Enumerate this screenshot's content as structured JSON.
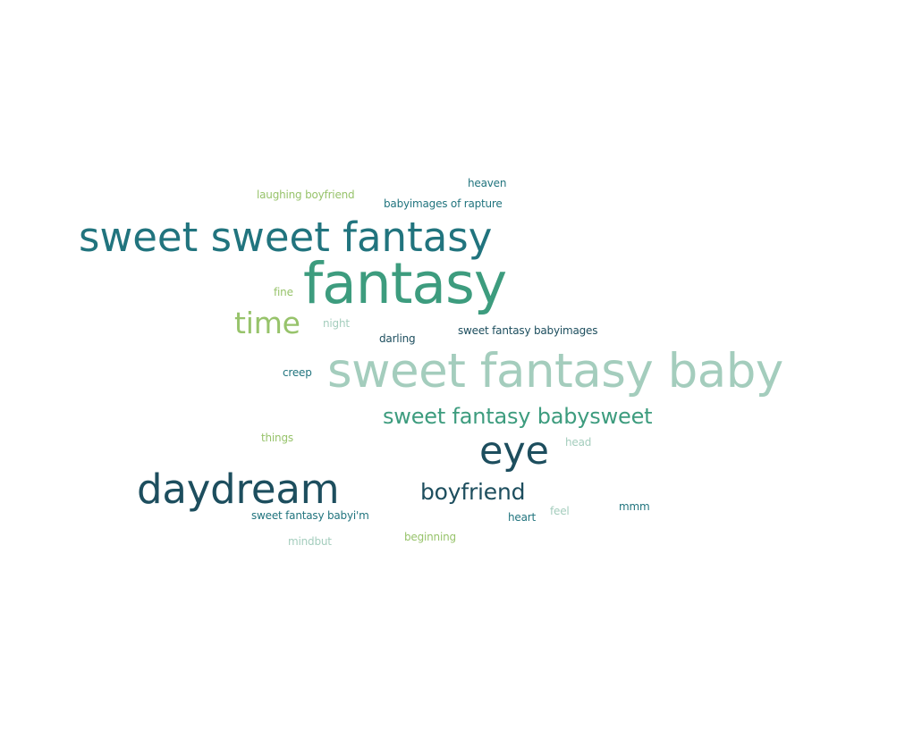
{
  "colors": {
    "background": "#ffffff",
    "dark_teal": "#1d4e5e",
    "teal": "#21747e",
    "green_teal": "#3d9c7e",
    "light_green": "#97c36b",
    "pale_mint": "#a4cdbd"
  },
  "words": {
    "heaven": {
      "text": "heaven",
      "color": "#21747e"
    },
    "laughing_boyfriend": {
      "text": "laughing boyfriend",
      "color": "#97c36b"
    },
    "babyimages_of_rapture": {
      "text": "babyimages of rapture",
      "color": "#21747e"
    },
    "sweet_sweet_fantasy": {
      "text": "sweet sweet fantasy",
      "color": "#21747e"
    },
    "fantasy": {
      "text": "fantasy",
      "color": "#3d9c7e"
    },
    "fine": {
      "text": "fine",
      "color": "#97c36b"
    },
    "time": {
      "text": "time",
      "color": "#97c36b"
    },
    "night": {
      "text": "night",
      "color": "#a4cdbd"
    },
    "sweet_fantasy_babyimages": {
      "text": "sweet fantasy babyimages",
      "color": "#1d4e5e"
    },
    "darling": {
      "text": "darling",
      "color": "#1d4e5e"
    },
    "sweet_fantasy_baby": {
      "text": "sweet fantasy baby",
      "color": "#a4cdbd"
    },
    "creep": {
      "text": "creep",
      "color": "#21747e"
    },
    "sweet_fantasy_babysweet": {
      "text": "sweet fantasy babysweet",
      "color": "#3d9c7e"
    },
    "things": {
      "text": "things",
      "color": "#97c36b"
    },
    "head": {
      "text": "head",
      "color": "#a4cdbd"
    },
    "eye": {
      "text": "eye",
      "color": "#1d4e5e"
    },
    "daydream": {
      "text": "daydream",
      "color": "#1d4e5e"
    },
    "boyfriend": {
      "text": "boyfriend",
      "color": "#1d4e5e"
    },
    "mmm": {
      "text": "mmm",
      "color": "#21747e"
    },
    "feel": {
      "text": "feel",
      "color": "#a4cdbd"
    },
    "sweet_fantasy_babyi_m": {
      "text": "sweet fantasy babyi'm",
      "color": "#21747e"
    },
    "heart": {
      "text": "heart",
      "color": "#21747e"
    },
    "beginning": {
      "text": "beginning",
      "color": "#97c36b"
    },
    "mindbut": {
      "text": "mindbut",
      "color": "#a4cdbd"
    }
  }
}
